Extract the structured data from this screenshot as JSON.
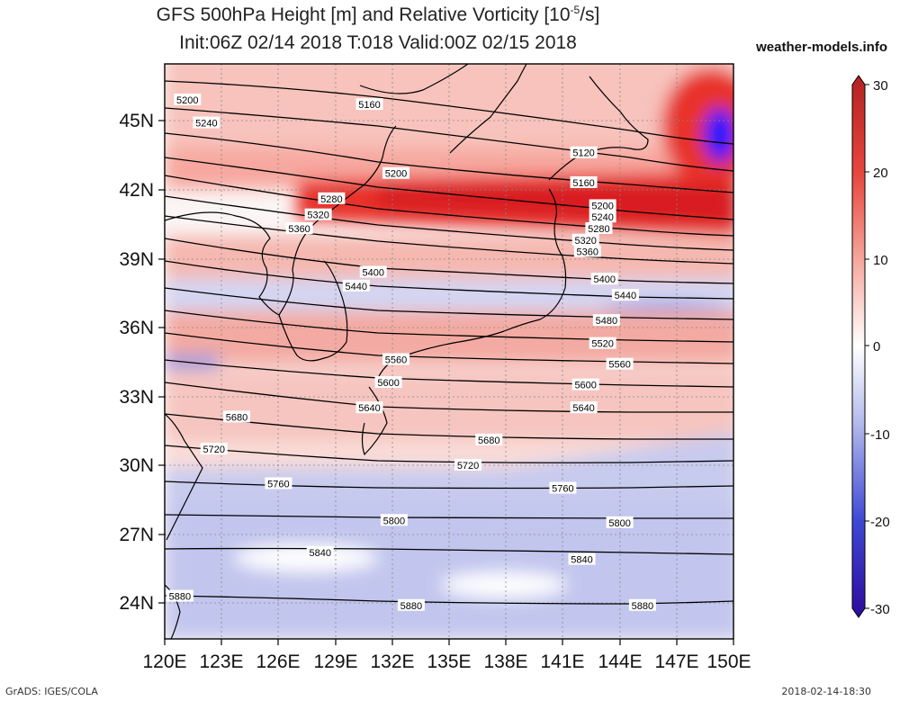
{
  "title": {
    "line1": "GFS 500hPa Height [m] and Relative Vorticity [10",
    "line1_sup": "-5",
    "line1_end": "/s]",
    "line2": "Init:06Z 02/14 2018 T:018 Valid:00Z 02/15 2018"
  },
  "site_label": "weather-models.info",
  "footer": {
    "left": "GrADS: IGES/COLA",
    "right": "2018-02-14-18:30"
  },
  "map": {
    "lat_labels": [
      "45N",
      "42N",
      "39N",
      "36N",
      "33N",
      "30N",
      "27N",
      "24N"
    ],
    "lon_labels": [
      "120E",
      "123E",
      "126E",
      "129E",
      "132E",
      "135E",
      "138E",
      "141E",
      "144E",
      "147E",
      "150E"
    ],
    "contour_labels": [
      {
        "text": "5200",
        "lon": 121.2,
        "lat": 45.9
      },
      {
        "text": "5240",
        "lon": 122.2,
        "lat": 44.9
      },
      {
        "text": "5160",
        "lon": 130.8,
        "lat": 45.7
      },
      {
        "text": "5120",
        "lon": 142.1,
        "lat": 43.6
      },
      {
        "text": "5200",
        "lon": 132.2,
        "lat": 42.7
      },
      {
        "text": "5160",
        "lon": 142.1,
        "lat": 42.3
      },
      {
        "text": "5280",
        "lon": 128.8,
        "lat": 41.6
      },
      {
        "text": "5200",
        "lon": 143.1,
        "lat": 41.3
      },
      {
        "text": "5320",
        "lon": 128.1,
        "lat": 40.9
      },
      {
        "text": "5240",
        "lon": 143.1,
        "lat": 40.8
      },
      {
        "text": "5360",
        "lon": 127.1,
        "lat": 40.3
      },
      {
        "text": "5280",
        "lon": 142.9,
        "lat": 40.3
      },
      {
        "text": "5320",
        "lon": 142.2,
        "lat": 39.8
      },
      {
        "text": "5360",
        "lon": 142.3,
        "lat": 39.3
      },
      {
        "text": "5400",
        "lon": 131.0,
        "lat": 38.4
      },
      {
        "text": "5440",
        "lon": 130.1,
        "lat": 37.8
      },
      {
        "text": "5400",
        "lon": 143.2,
        "lat": 38.1
      },
      {
        "text": "5440",
        "lon": 144.3,
        "lat": 37.4
      },
      {
        "text": "5480",
        "lon": 143.3,
        "lat": 36.3
      },
      {
        "text": "5520",
        "lon": 143.1,
        "lat": 35.3
      },
      {
        "text": "5560",
        "lon": 132.2,
        "lat": 34.6
      },
      {
        "text": "5560",
        "lon": 144.0,
        "lat": 34.4
      },
      {
        "text": "5600",
        "lon": 131.8,
        "lat": 33.6
      },
      {
        "text": "5600",
        "lon": 142.2,
        "lat": 33.5
      },
      {
        "text": "5640",
        "lon": 130.8,
        "lat": 32.5
      },
      {
        "text": "5640",
        "lon": 142.1,
        "lat": 32.5
      },
      {
        "text": "5680",
        "lon": 123.8,
        "lat": 32.1
      },
      {
        "text": "5680",
        "lon": 137.1,
        "lat": 31.1
      },
      {
        "text": "5720",
        "lon": 122.6,
        "lat": 30.7
      },
      {
        "text": "5720",
        "lon": 136.0,
        "lat": 30.0
      },
      {
        "text": "5760",
        "lon": 126.0,
        "lat": 29.2
      },
      {
        "text": "5760",
        "lon": 141.0,
        "lat": 29.0
      },
      {
        "text": "5800",
        "lon": 132.1,
        "lat": 27.6
      },
      {
        "text": "5800",
        "lon": 144.0,
        "lat": 27.5
      },
      {
        "text": "5840",
        "lon": 128.2,
        "lat": 26.2
      },
      {
        "text": "5840",
        "lon": 142.0,
        "lat": 25.9
      },
      {
        "text": "5880",
        "lon": 120.8,
        "lat": 24.3
      },
      {
        "text": "5880",
        "lon": 133.0,
        "lat": 23.9
      },
      {
        "text": "5880",
        "lon": 145.2,
        "lat": 23.9
      }
    ]
  },
  "colorbar": {
    "labels": [
      "30",
      "20",
      "10",
      "0",
      "-10",
      "-20",
      "-30"
    ],
    "colors": {
      "max": "#b22222",
      "mid": "#ffffff",
      "min": "#2e0a9e"
    }
  }
}
